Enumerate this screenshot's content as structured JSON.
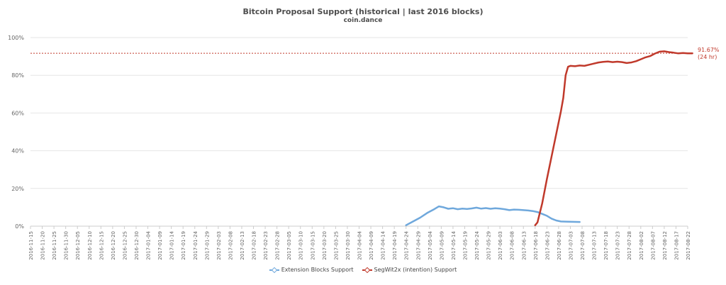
{
  "chart_data": {
    "type": "line",
    "title": "Bitcoin Proposal Support (historical | last 2016 blocks)",
    "subtitle": "coin.dance",
    "xlabel": "",
    "ylabel": "",
    "ylim": [
      0,
      100
    ],
    "y_ticks": [
      "0%",
      "20%",
      "40%",
      "60%",
      "80%",
      "100%"
    ],
    "grid": true,
    "legend": "bottom",
    "x_ticks": [
      "2016-11-15",
      "2016-11-20",
      "2016-11-25",
      "2016-11-30",
      "2016-12-05",
      "2016-12-10",
      "2016-12-15",
      "2016-12-20",
      "2016-12-25",
      "2016-12-30",
      "2017-01-04",
      "2017-01-09",
      "2017-01-14",
      "2017-01-19",
      "2017-01-24",
      "2017-01-29",
      "2017-02-03",
      "2017-02-08",
      "2017-02-13",
      "2017-02-18",
      "2017-02-23",
      "2017-02-28",
      "2017-03-05",
      "2017-03-10",
      "2017-03-15",
      "2017-03-20",
      "2017-03-25",
      "2017-03-30",
      "2017-04-04",
      "2017-04-09",
      "2017-04-14",
      "2017-04-19",
      "2017-04-24",
      "2017-04-29",
      "2017-05-04",
      "2017-05-09",
      "2017-05-14",
      "2017-05-19",
      "2017-05-24",
      "2017-05-29",
      "2017-06-03",
      "2017-06-08",
      "2017-06-13",
      "2017-06-18",
      "2017-06-23",
      "2017-06-28",
      "2017-07-03",
      "2017-07-08",
      "2017-07-13",
      "2017-07-18",
      "2017-07-23",
      "2017-07-28",
      "2017-08-02",
      "2017-08-07",
      "2017-08-12",
      "2017-08-17",
      "2017-08-22"
    ],
    "series": [
      {
        "name": "Extension Blocks Support",
        "color": "#6fa8dc",
        "points": [
          [
            "2017-04-24",
            0.5
          ],
          [
            "2017-04-27",
            2.5
          ],
          [
            "2017-04-30",
            4.5
          ],
          [
            "2017-05-03",
            7
          ],
          [
            "2017-05-06",
            9
          ],
          [
            "2017-05-08",
            10.5
          ],
          [
            "2017-05-10",
            10
          ],
          [
            "2017-05-12",
            9.2
          ],
          [
            "2017-05-14",
            9.5
          ],
          [
            "2017-05-16",
            9
          ],
          [
            "2017-05-18",
            9.3
          ],
          [
            "2017-05-20",
            9.1
          ],
          [
            "2017-05-22",
            9.4
          ],
          [
            "2017-05-24",
            9.8
          ],
          [
            "2017-05-26",
            9.3
          ],
          [
            "2017-05-28",
            9.6
          ],
          [
            "2017-05-30",
            9.2
          ],
          [
            "2017-06-01",
            9.5
          ],
          [
            "2017-06-03",
            9.3
          ],
          [
            "2017-06-05",
            9.0
          ],
          [
            "2017-06-07",
            8.5
          ],
          [
            "2017-06-09",
            8.8
          ],
          [
            "2017-06-11",
            8.7
          ],
          [
            "2017-06-13",
            8.5
          ],
          [
            "2017-06-15",
            8.3
          ],
          [
            "2017-06-17",
            8.0
          ],
          [
            "2017-06-19",
            7.5
          ],
          [
            "2017-06-21",
            6.5
          ],
          [
            "2017-06-23",
            5.5
          ],
          [
            "2017-06-25",
            4.0
          ],
          [
            "2017-06-27",
            3.0
          ],
          [
            "2017-06-29",
            2.5
          ],
          [
            "2017-07-01",
            2.4
          ],
          [
            "2017-07-04",
            2.3
          ],
          [
            "2017-07-07",
            2.2
          ]
        ]
      },
      {
        "name": "SegWit2x (intention) Support",
        "color": "#c0392b",
        "points": [
          [
            "2017-06-18",
            0.5
          ],
          [
            "2017-06-19",
            2
          ],
          [
            "2017-06-21",
            12
          ],
          [
            "2017-06-23",
            25
          ],
          [
            "2017-06-25",
            37
          ],
          [
            "2017-06-27",
            49
          ],
          [
            "2017-06-29",
            61
          ],
          [
            "2017-06-30",
            68
          ],
          [
            "2017-07-01",
            80
          ],
          [
            "2017-07-02",
            84.5
          ],
          [
            "2017-07-03",
            85
          ],
          [
            "2017-07-05",
            84.8
          ],
          [
            "2017-07-07",
            85.2
          ],
          [
            "2017-07-09",
            85
          ],
          [
            "2017-07-11",
            85.6
          ],
          [
            "2017-07-13",
            86.2
          ],
          [
            "2017-07-15",
            86.8
          ],
          [
            "2017-07-17",
            87.1
          ],
          [
            "2017-07-19",
            87.3
          ],
          [
            "2017-07-21",
            87
          ],
          [
            "2017-07-23",
            87.2
          ],
          [
            "2017-07-25",
            87
          ],
          [
            "2017-07-27",
            86.5
          ],
          [
            "2017-07-29",
            86.8
          ],
          [
            "2017-07-31",
            87.5
          ],
          [
            "2017-08-02",
            88.5
          ],
          [
            "2017-08-04",
            89.5
          ],
          [
            "2017-08-06",
            90.2
          ],
          [
            "2017-08-08",
            91.5
          ],
          [
            "2017-08-10",
            92.5
          ],
          [
            "2017-08-12",
            92.7
          ],
          [
            "2017-08-14",
            92.3
          ],
          [
            "2017-08-16",
            92.0
          ],
          [
            "2017-08-18",
            91.6
          ],
          [
            "2017-08-20",
            91.8
          ],
          [
            "2017-08-22",
            91.6
          ],
          [
            "2017-08-24",
            91.67
          ]
        ]
      }
    ],
    "reference_line": {
      "value": 91.67,
      "label_value": "91.67%",
      "label_note": "(24 hr)",
      "color": "#c0392b"
    }
  }
}
